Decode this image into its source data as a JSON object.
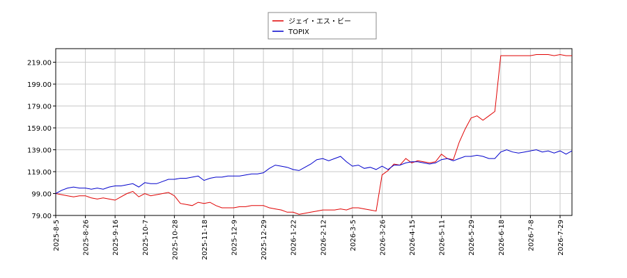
{
  "chart_data": {
    "type": "line",
    "categories": [
      "2025-8-5",
      null,
      null,
      null,
      null,
      "2025-8-26",
      null,
      null,
      null,
      null,
      "2025-9-16",
      null,
      null,
      null,
      null,
      "2025-10-7",
      null,
      null,
      null,
      null,
      "2025-10-28",
      null,
      null,
      null,
      null,
      "2025-11-18",
      null,
      null,
      null,
      null,
      "2025-12-9",
      null,
      null,
      null,
      null,
      "2025-12-29",
      null,
      null,
      null,
      null,
      "2026-1-22",
      null,
      null,
      null,
      null,
      "2026-2-12",
      null,
      null,
      null,
      null,
      "2026-3-5",
      null,
      null,
      null,
      null,
      "2026-3-26",
      null,
      null,
      null,
      null,
      "2026-4-15",
      null,
      null,
      null,
      null,
      "2026-5-11",
      null,
      null,
      null,
      null,
      "2026-5-29",
      null,
      null,
      null,
      null,
      "2026-6-18",
      null,
      null,
      null,
      null,
      "2026-7-8",
      null,
      null,
      null,
      null,
      "2026-7-29",
      null,
      null
    ],
    "series": [
      {
        "name": "ジェイ・エス・ビー",
        "color": "#e00000",
        "values": [
          99,
          98,
          97,
          96,
          97,
          97,
          95,
          94,
          95,
          94,
          93,
          96,
          99,
          101,
          96,
          99,
          97,
          98,
          99,
          100,
          97,
          90,
          89,
          88,
          91,
          90,
          91,
          88,
          86,
          86,
          86,
          87,
          87,
          88,
          88,
          88,
          86,
          85,
          84,
          82,
          82,
          80,
          81,
          82,
          83,
          84,
          84,
          84,
          85,
          84,
          86,
          86,
          85,
          84,
          83,
          116,
          120,
          126,
          125,
          131,
          127,
          129,
          128,
          127,
          128,
          135,
          131,
          130,
          146,
          158,
          168,
          170,
          166,
          170,
          174,
          225,
          225,
          225,
          225,
          225,
          225,
          226,
          226,
          226,
          225,
          226,
          225,
          225
        ]
      },
      {
        "name": "TOPIX",
        "color": "#0000cc",
        "values": [
          99,
          102,
          104,
          105,
          104,
          104,
          103,
          104,
          103,
          105,
          106,
          106,
          107,
          108,
          105,
          109,
          108,
          108,
          110,
          112,
          112,
          113,
          113,
          114,
          115,
          111,
          113,
          114,
          114,
          115,
          115,
          115,
          116,
          117,
          117,
          118,
          122,
          125,
          124,
          123,
          121,
          120,
          123,
          126,
          130,
          131,
          129,
          131,
          133,
          128,
          124,
          125,
          122,
          123,
          121,
          124,
          121,
          125,
          125,
          127,
          128,
          128,
          127,
          126,
          127,
          130,
          131,
          129,
          131,
          133,
          133,
          134,
          133,
          131,
          131,
          137,
          139,
          137,
          136,
          137,
          138,
          139,
          137,
          138,
          136,
          138,
          135,
          138
        ]
      }
    ],
    "ylim": [
      79,
      231.4
    ],
    "yticks": [
      {
        "value": 79,
        "label": "79.00"
      },
      {
        "value": 99,
        "label": "99.00"
      },
      {
        "value": 119,
        "label": "119.00"
      },
      {
        "value": 139,
        "label": "139.00"
      },
      {
        "value": 159,
        "label": "159.00"
      },
      {
        "value": 179,
        "label": "179.00"
      },
      {
        "value": 199,
        "label": "199.00"
      },
      {
        "value": 219,
        "label": "219.00"
      }
    ],
    "grid": true
  }
}
